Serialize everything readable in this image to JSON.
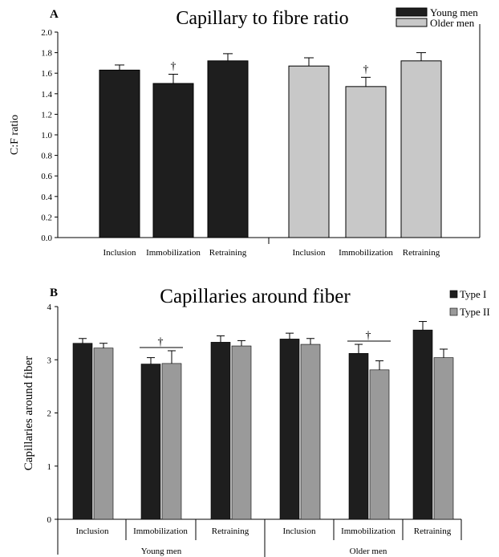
{
  "chart_data": [
    {
      "panel": "A",
      "type": "bar",
      "title": "Capillary to fibre ratio",
      "ylabel": "C:F ratio",
      "ylim": [
        0,
        2.0
      ],
      "yticks": [
        "0.0",
        "0.2",
        "0.4",
        "0.6",
        "0.8",
        "1.0",
        "1.2",
        "1.4",
        "1.6",
        "1.8",
        "2.0"
      ],
      "groups": [
        {
          "name": "Young men",
          "color": "#1e1e1e",
          "bars": [
            {
              "category": "Inclusion",
              "value": 1.63,
              "error": 0.05,
              "dagger": ""
            },
            {
              "category": "Immobilization",
              "value": 1.5,
              "error": 0.09,
              "dagger": "†"
            },
            {
              "category": "Retraining",
              "value": 1.72,
              "error": 0.07,
              "dagger": ""
            }
          ]
        },
        {
          "name": "Older men",
          "color": "#c8c8c8",
          "bars": [
            {
              "category": "Inclusion",
              "value": 1.67,
              "error": 0.08,
              "dagger": ""
            },
            {
              "category": "Immobilization",
              "value": 1.47,
              "error": 0.09,
              "dagger": "†"
            },
            {
              "category": "Retraining",
              "value": 1.72,
              "error": 0.08,
              "dagger": ""
            }
          ]
        }
      ],
      "legend": [
        {
          "label": "Young men",
          "color": "#1e1e1e"
        },
        {
          "label": "Older men",
          "color": "#c8c8c8"
        }
      ],
      "legend_position": "top-right"
    },
    {
      "panel": "B",
      "type": "bar",
      "title": "Capillaries around fiber",
      "ylabel": "Capillaries around fiber",
      "ylim": [
        0,
        4
      ],
      "yticks": [
        "0",
        "1",
        "2",
        "3",
        "4"
      ],
      "series": [
        {
          "name": "Type I",
          "color": "#1e1e1e"
        },
        {
          "name": "Type II",
          "color": "#9a9a9a"
        }
      ],
      "groups": [
        {
          "name": "Young men",
          "categories": [
            {
              "label": "Inclusion",
              "values": [
                3.31,
                3.22
              ],
              "errors": [
                0.09,
                0.09
              ],
              "dagger": ""
            },
            {
              "label": "Immobilization",
              "values": [
                2.92,
                2.93
              ],
              "errors": [
                0.12,
                0.24
              ],
              "dagger": "†"
            },
            {
              "label": "Retraining",
              "values": [
                3.33,
                3.26
              ],
              "errors": [
                0.12,
                0.1
              ],
              "dagger": ""
            }
          ]
        },
        {
          "name": "Older men",
          "categories": [
            {
              "label": "Inclusion",
              "values": [
                3.39,
                3.29
              ],
              "errors": [
                0.11,
                0.11
              ],
              "dagger": ""
            },
            {
              "label": "Immobilization",
              "values": [
                3.12,
                2.81
              ],
              "errors": [
                0.17,
                0.17
              ],
              "dagger": "†"
            },
            {
              "label": "Retraining",
              "values": [
                3.56,
                3.04
              ],
              "errors": [
                0.16,
                0.16
              ],
              "dagger": ""
            }
          ]
        }
      ],
      "legend_position": "top-right"
    }
  ]
}
